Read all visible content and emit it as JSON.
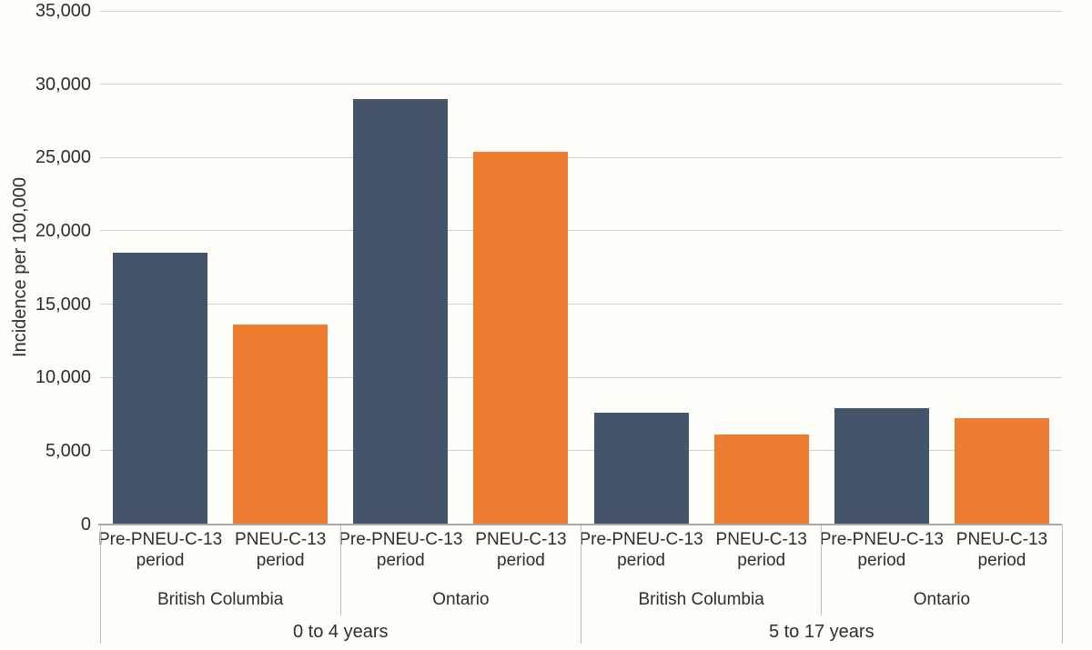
{
  "chart_data": {
    "type": "bar",
    "title": "",
    "xlabel": "",
    "ylabel": "Incidence per 100,000",
    "ylim": [
      0,
      35000
    ],
    "ytick_step": 5000,
    "ytick_labels": [
      "0",
      "5,000",
      "10,000",
      "15,000",
      "20,000",
      "25,000",
      "30,000",
      "35,000"
    ],
    "grid": "horizontal",
    "legend_position": "none",
    "series": [
      {
        "name": "Pre-PNEU-C-13 period",
        "label_lines": [
          "Pre-PNEU-C-13",
          "period"
        ],
        "color": "#44546A"
      },
      {
        "name": "PNEU-C-13 period",
        "label_lines": [
          "PNEU-C-13",
          "period"
        ],
        "color": "#ED7D31"
      }
    ],
    "groups": [
      {
        "label": "0 to 4 years",
        "provinces": [
          {
            "label": "British Columbia",
            "values": [
              18500,
              13600
            ]
          },
          {
            "label": "Ontario",
            "values": [
              29000,
              25400
            ]
          }
        ]
      },
      {
        "label": "5 to 17 years",
        "provinces": [
          {
            "label": "British Columbia",
            "values": [
              7600,
              6100
            ]
          },
          {
            "label": "Ontario",
            "values": [
              7900,
              7200
            ]
          }
        ]
      }
    ],
    "colors": {
      "background": "#fffefa",
      "grid_line": "#ccd0d8",
      "axis_line": "#a9a9a9",
      "category_border": "#bdbdbd",
      "text": "#2e2e2e"
    }
  }
}
